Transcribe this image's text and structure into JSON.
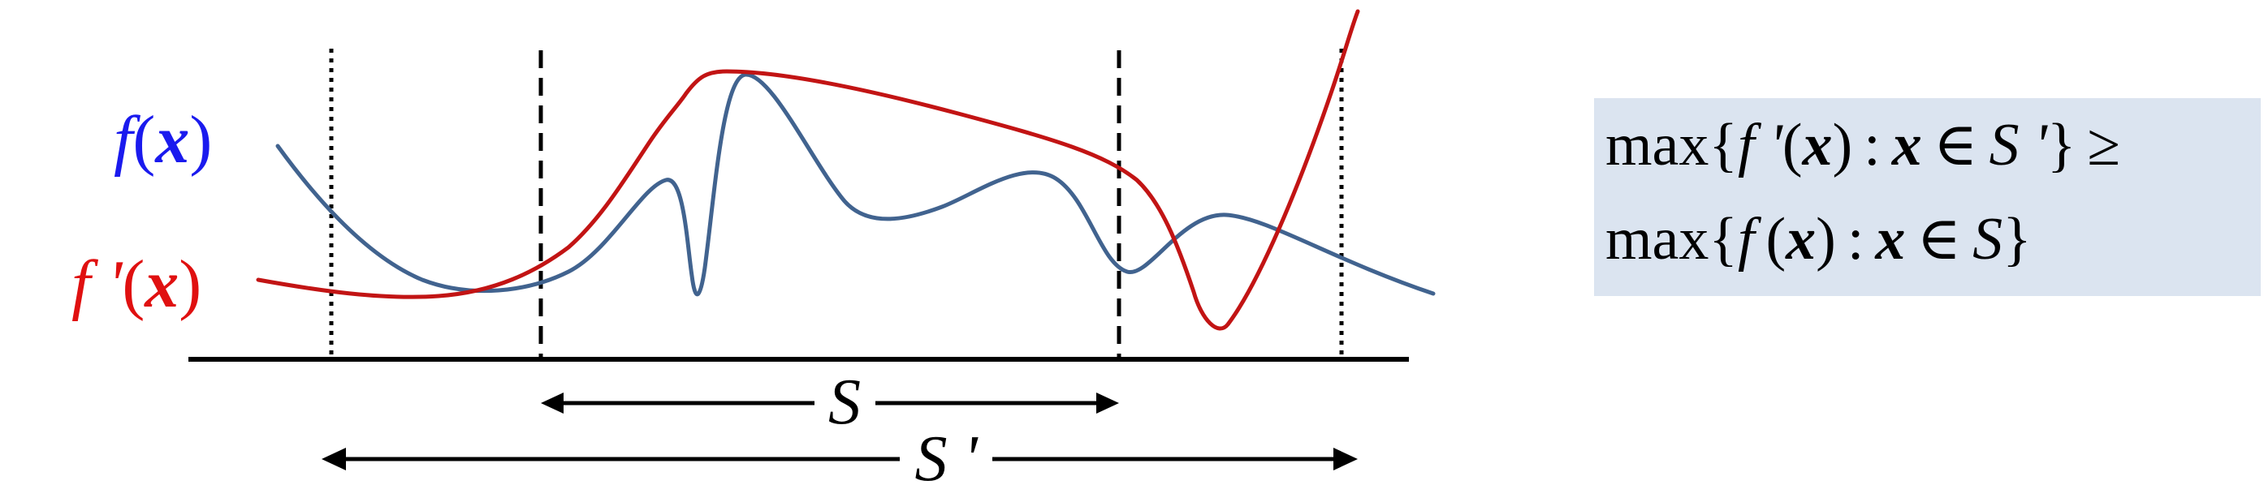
{
  "labels": {
    "f_func": "f",
    "f_arg": "x",
    "fp_func": "f '",
    "fp_arg": "x",
    "s": "S",
    "s_prime": "S '"
  },
  "formula": {
    "line1": {
      "max": "max",
      "lbrace": "{",
      "func": "f '",
      "arg": "x",
      "colon": ":",
      "var": "x",
      "in": "∈",
      "set": "S '",
      "rbrace": "}",
      "rel": "≥"
    },
    "line2": {
      "max": "max",
      "lbrace": "{",
      "func": "f",
      "arg": "x",
      "colon": ":",
      "var": "x",
      "in": "∈",
      "set": "S",
      "rbrace": "}"
    }
  },
  "colors": {
    "f_curve": "#41638f",
    "f_label": "#1a1aee",
    "fp_curve": "#c21414",
    "fp_label": "#e01010",
    "axis": "#000000",
    "box": "#dbe4f0"
  }
}
